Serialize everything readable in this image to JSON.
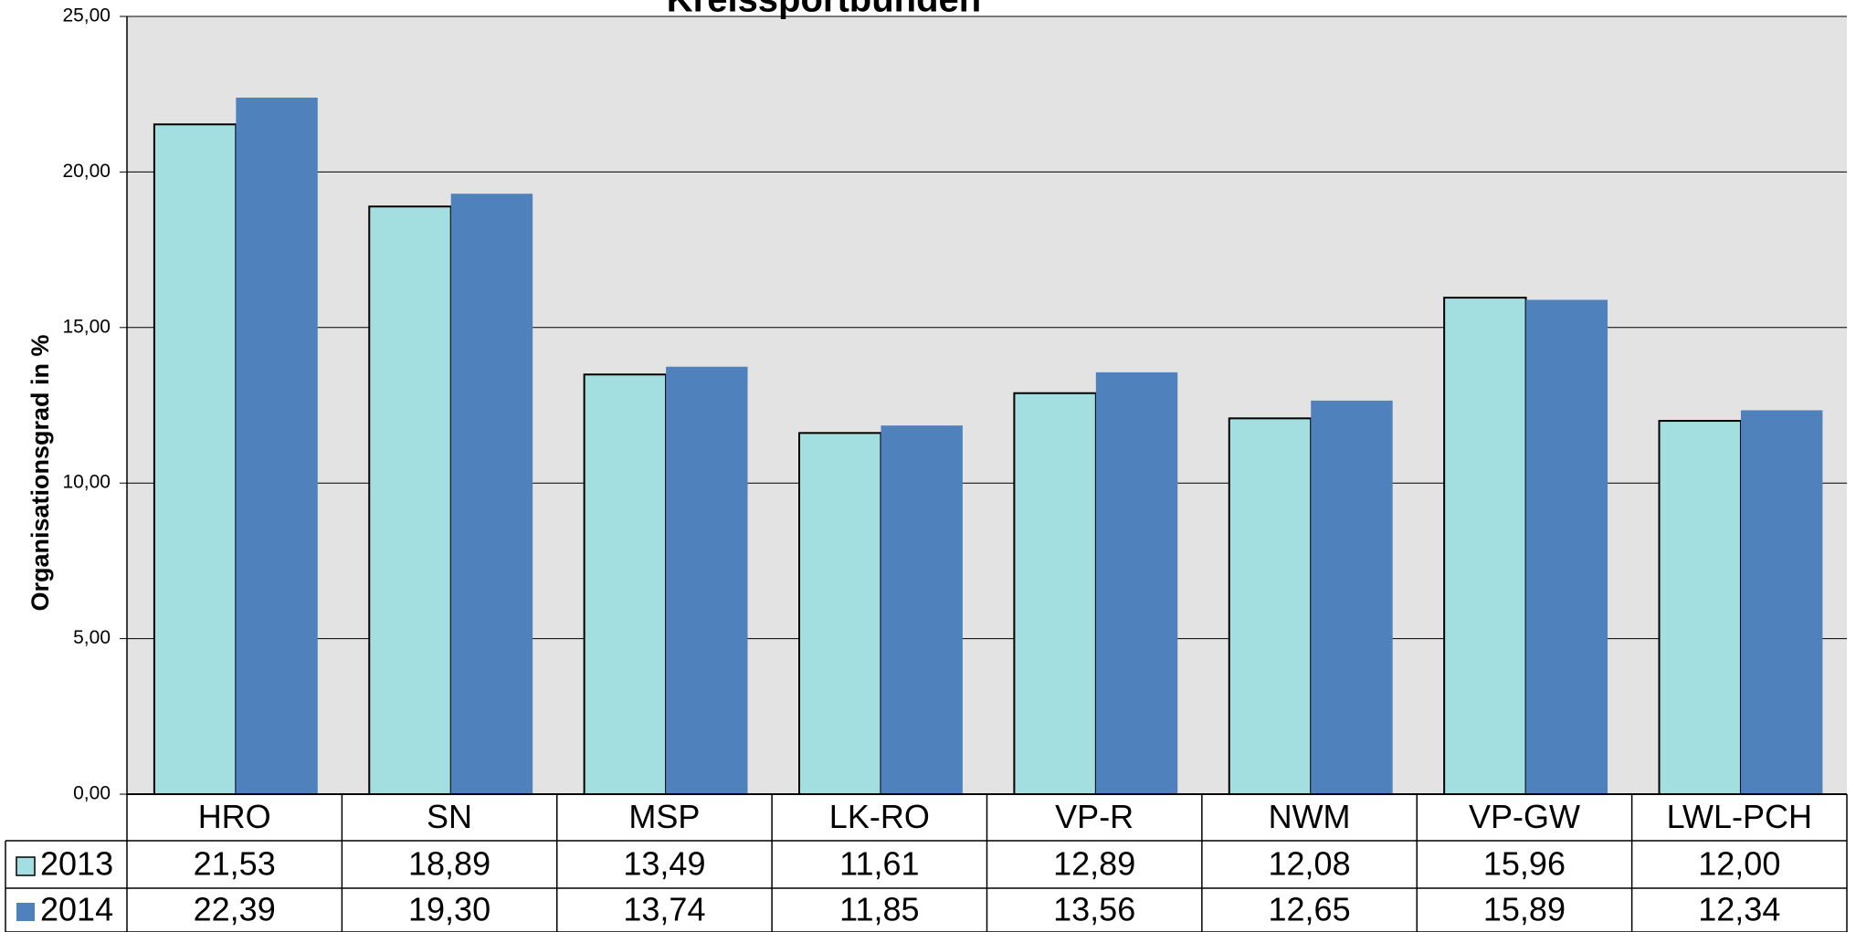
{
  "chart_data": {
    "type": "bar",
    "title": "Kreissportbünden",
    "y_label": "Organisationsgrad in %",
    "categories": [
      "HRO",
      "SN",
      "MSP",
      "LK-RO",
      "VP-R",
      "NWM",
      "VP-GW",
      "LWL-PCH"
    ],
    "series": [
      {
        "name": "2013",
        "color": "#a3dfe0",
        "values": [
          21.53,
          18.89,
          13.49,
          11.61,
          12.89,
          12.08,
          15.96,
          12.0
        ],
        "value_labels": [
          "21,53",
          "18,89",
          "13,49",
          "11,61",
          "12,89",
          "12,08",
          "15,96",
          "12,00"
        ]
      },
      {
        "name": "2014",
        "color": "#4f81bd",
        "values": [
          22.39,
          19.3,
          13.74,
          11.85,
          13.56,
          12.65,
          15.89,
          12.34
        ],
        "value_labels": [
          "22,39",
          "19,30",
          "13,74",
          "11,85",
          "13,56",
          "12,65",
          "15,89",
          "12,34"
        ]
      }
    ],
    "ylim": [
      0,
      25
    ],
    "yticks": [
      {
        "value": 0,
        "label": "0,00"
      },
      {
        "value": 5,
        "label": "5,00"
      },
      {
        "value": 10,
        "label": "10,00"
      },
      {
        "value": 15,
        "label": "15,00"
      },
      {
        "value": 20,
        "label": "20,00"
      },
      {
        "value": 25,
        "label": "25,00"
      }
    ],
    "grid": true
  }
}
